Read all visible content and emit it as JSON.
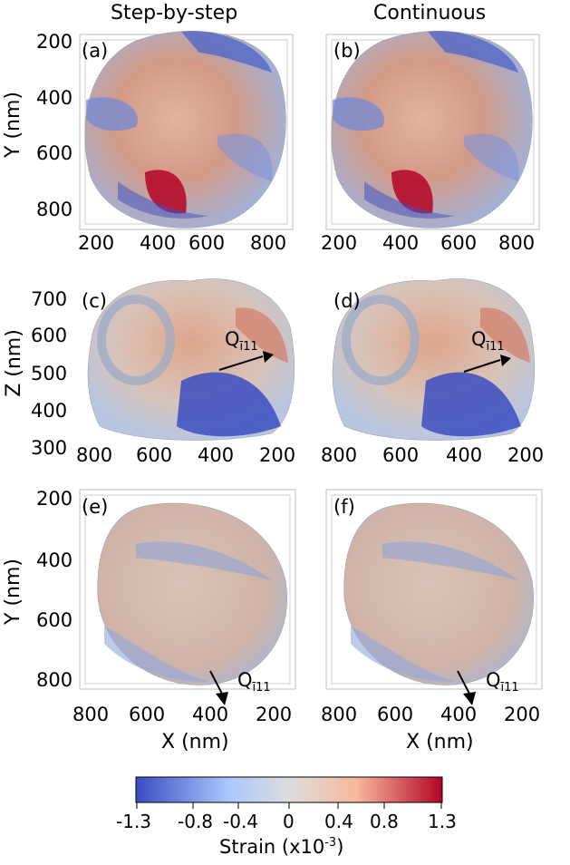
{
  "columns": {
    "left": "Step-by-step",
    "right": "Continuous"
  },
  "panels": [
    "(a)",
    "(b)",
    "(c)",
    "(d)",
    "(e)",
    "(f)"
  ],
  "axes": {
    "y_nm": "Y (nm)",
    "z_nm": "Z (nm)",
    "x_nm": "X (nm)",
    "row1_y_ticks": [
      "200",
      "400",
      "600",
      "800"
    ],
    "row1_x_ticks": [
      "200",
      "400",
      "600",
      "800"
    ],
    "row2_z_ticks": [
      "700",
      "600",
      "500",
      "400",
      "300"
    ],
    "row2_x_ticks": [
      "800",
      "600",
      "400",
      "200"
    ],
    "row3_y_ticks": [
      "200",
      "400",
      "600",
      "800"
    ],
    "row3_x_ticks": [
      "800",
      "600",
      "400",
      "200"
    ]
  },
  "arrow": {
    "letter": "Q",
    "sub": "ī11"
  },
  "colorbar": {
    "ticks": [
      "-1.3",
      "-0.8",
      "-0.4",
      "0",
      "0.4",
      "0.8",
      "1.3"
    ],
    "label": "Strain (x10",
    "exp": "-3",
    "label_end": ")",
    "colors": [
      "#3b4cc0",
      "#aac7fd",
      "#dddddd",
      "#f7b89c",
      "#b40426"
    ]
  }
}
